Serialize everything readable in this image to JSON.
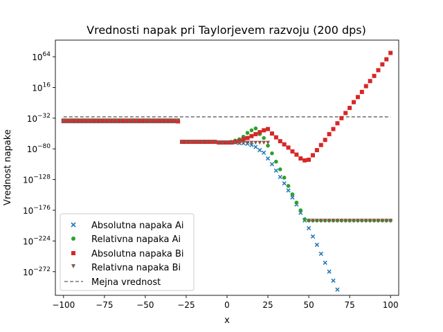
{
  "chart_data": {
    "type": "scatter",
    "title": "Vrednosti napak pri Taylorjevem razvoju (200 dps)",
    "xlabel": "x",
    "ylabel": "Vrednost napake",
    "xlim": [
      -105,
      105
    ],
    "ylim": [
      -309,
      90
    ],
    "y_scale": "log10",
    "grid": false,
    "legend_position": "lower-left",
    "x_ticks": [
      -100,
      -75,
      -50,
      -25,
      0,
      25,
      50,
      75,
      100
    ],
    "x_tick_labels": [
      "−100",
      "−75",
      "−50",
      "−25",
      "0",
      "25",
      "50",
      "75",
      "100"
    ],
    "y_ticks": [
      {
        "base": "10",
        "exp": "64",
        "value": 64
      },
      {
        "base": "10",
        "exp": "16",
        "value": 16
      },
      {
        "base": "10",
        "exp": "−32",
        "value": -32
      },
      {
        "base": "10",
        "exp": "−80",
        "value": -80
      },
      {
        "base": "10",
        "exp": "−128",
        "value": -128
      },
      {
        "base": "10",
        "exp": "−176",
        "value": -176
      },
      {
        "base": "10",
        "exp": "−224",
        "value": -224
      },
      {
        "base": "10",
        "exp": "−272",
        "value": -272
      }
    ],
    "x_values": [
      -100,
      -97.5,
      -95,
      -92.5,
      -90,
      -87.5,
      -85,
      -82.5,
      -80,
      -77.5,
      -75,
      -72.5,
      -70,
      -67.5,
      -65,
      -62.5,
      -60,
      -57.5,
      -55,
      -52.5,
      -50,
      -47.5,
      -45,
      -42.5,
      -40,
      -37.5,
      -35,
      -32.5,
      -30,
      -27.5,
      -25,
      -22.5,
      -20,
      -17.5,
      -15,
      -12.5,
      -10,
      -7.5,
      -5,
      -2.5,
      0,
      2.5,
      5,
      7.5,
      10,
      12.5,
      15,
      17.5,
      20,
      22.5,
      25,
      27.5,
      30,
      32.5,
      35,
      37.5,
      40,
      42.5,
      45,
      47.5,
      50,
      52.5,
      55,
      57.5,
      60,
      62.5,
      65,
      67.5,
      70,
      72.5,
      75,
      77.5,
      80,
      82.5,
      85,
      87.5,
      90,
      92.5,
      95,
      97.5,
      100
    ],
    "series": [
      {
        "name": "Absolutna napaka Ai",
        "marker": "x",
        "color": "#1f77b4",
        "values": [
          -37,
          -37,
          -37,
          -37,
          -37,
          -37,
          -37,
          -37,
          -37,
          -37,
          -37,
          -37,
          -37,
          -37,
          -37,
          -37,
          -37,
          -37,
          -37,
          -37,
          -37,
          -37,
          -37,
          -37,
          -37,
          -37,
          -37,
          -37,
          -37,
          -69,
          -69,
          -69,
          -69,
          -69,
          -69,
          -69,
          -69,
          -69,
          -70,
          -70,
          -70,
          -70,
          -70,
          -71,
          -71,
          -72,
          -74,
          -77,
          -82,
          -86,
          -95,
          -104,
          -114,
          -124,
          -134,
          -145,
          -156,
          -167,
          -180,
          -192,
          -204,
          -217,
          -230,
          -244,
          -258,
          -272,
          -286,
          -300,
          null,
          null,
          null,
          null,
          null,
          null,
          null,
          null,
          null,
          null,
          null,
          null,
          null
        ]
      },
      {
        "name": "Relativna napaka Ai",
        "marker": "circle",
        "color": "#2ca02c",
        "values": [
          -37,
          -37,
          -37,
          -37,
          -37,
          -37,
          -37,
          -37,
          -37,
          -37,
          -37,
          -37,
          -37,
          -37,
          -37,
          -37,
          -37,
          -37,
          -37,
          -37,
          -37,
          -37,
          -37,
          -37,
          -37,
          -37,
          -37,
          -37,
          -37,
          -69,
          -69,
          -69,
          -69,
          -69,
          -69,
          -69,
          -69,
          -69,
          -70,
          -70,
          -70,
          -69,
          -67,
          -65,
          -61,
          -55,
          -51,
          -48,
          -57,
          -63,
          -75,
          -87,
          -100,
          -112,
          -125,
          -138,
          -151,
          -164,
          -176,
          -190,
          -192,
          -192,
          -192,
          -192,
          -192,
          -192,
          -192,
          -192,
          -192,
          -192,
          -192,
          -192,
          -192,
          -192,
          -192,
          -192,
          -192,
          -192,
          -192,
          -192,
          -192
        ]
      },
      {
        "name": "Absolutna napaka Bi",
        "marker": "square",
        "color": "#d62728",
        "values": [
          -36,
          -36,
          -36,
          -36,
          -36,
          -36,
          -36,
          -36,
          -36,
          -36,
          -36,
          -36,
          -36,
          -36,
          -36,
          -36,
          -36,
          -36,
          -36,
          -36,
          -36,
          -36,
          -36,
          -36,
          -36,
          -36,
          -36,
          -36,
          -37,
          -69,
          -69,
          -69,
          -69,
          -69,
          -69,
          -69,
          -69,
          -69,
          -70,
          -70,
          -70,
          -70,
          -69,
          -68,
          -65,
          -63,
          -60,
          -57,
          -54,
          -51,
          -49,
          -56,
          -62,
          -68,
          -73,
          -78,
          -84,
          -89,
          -95,
          -98,
          -97,
          -90,
          -82,
          -74,
          -66,
          -57,
          -49,
          -40,
          -32,
          -24,
          -16,
          -7,
          1,
          9,
          18,
          26,
          34,
          43,
          52,
          60,
          70
        ]
      },
      {
        "name": "Relativna napaka Bi",
        "marker": "triangle-down",
        "color": "#8c564b",
        "values": [
          -35,
          -35,
          -35,
          -35,
          -35,
          -35,
          -35,
          -35,
          -35,
          -35,
          -35,
          -35,
          -35,
          -35,
          -35,
          -35,
          -35,
          -35,
          -35,
          -35,
          -35,
          -35,
          -35,
          -35,
          -35,
          -35,
          -35,
          -35,
          -35,
          -69,
          -69,
          -69,
          -69,
          -69,
          -69,
          -69,
          -69,
          -69,
          -70,
          -70,
          -70,
          -70,
          -70,
          -70,
          -70,
          -70,
          -70,
          -70,
          -70,
          -70,
          -70,
          null,
          null,
          null,
          null,
          null,
          null,
          null,
          null,
          null,
          -192,
          -192,
          -192,
          -192,
          -192,
          -192,
          -192,
          -192,
          -192,
          -192,
          -192,
          -192,
          -192,
          -192,
          -192,
          -192,
          -192,
          -192,
          -192,
          -192,
          -192
        ]
      }
    ],
    "reference_line": {
      "name": "Mejna vrednost",
      "style": "dashed",
      "color": "#777777",
      "x_range": [
        -100,
        100
      ],
      "value": -30
    }
  }
}
